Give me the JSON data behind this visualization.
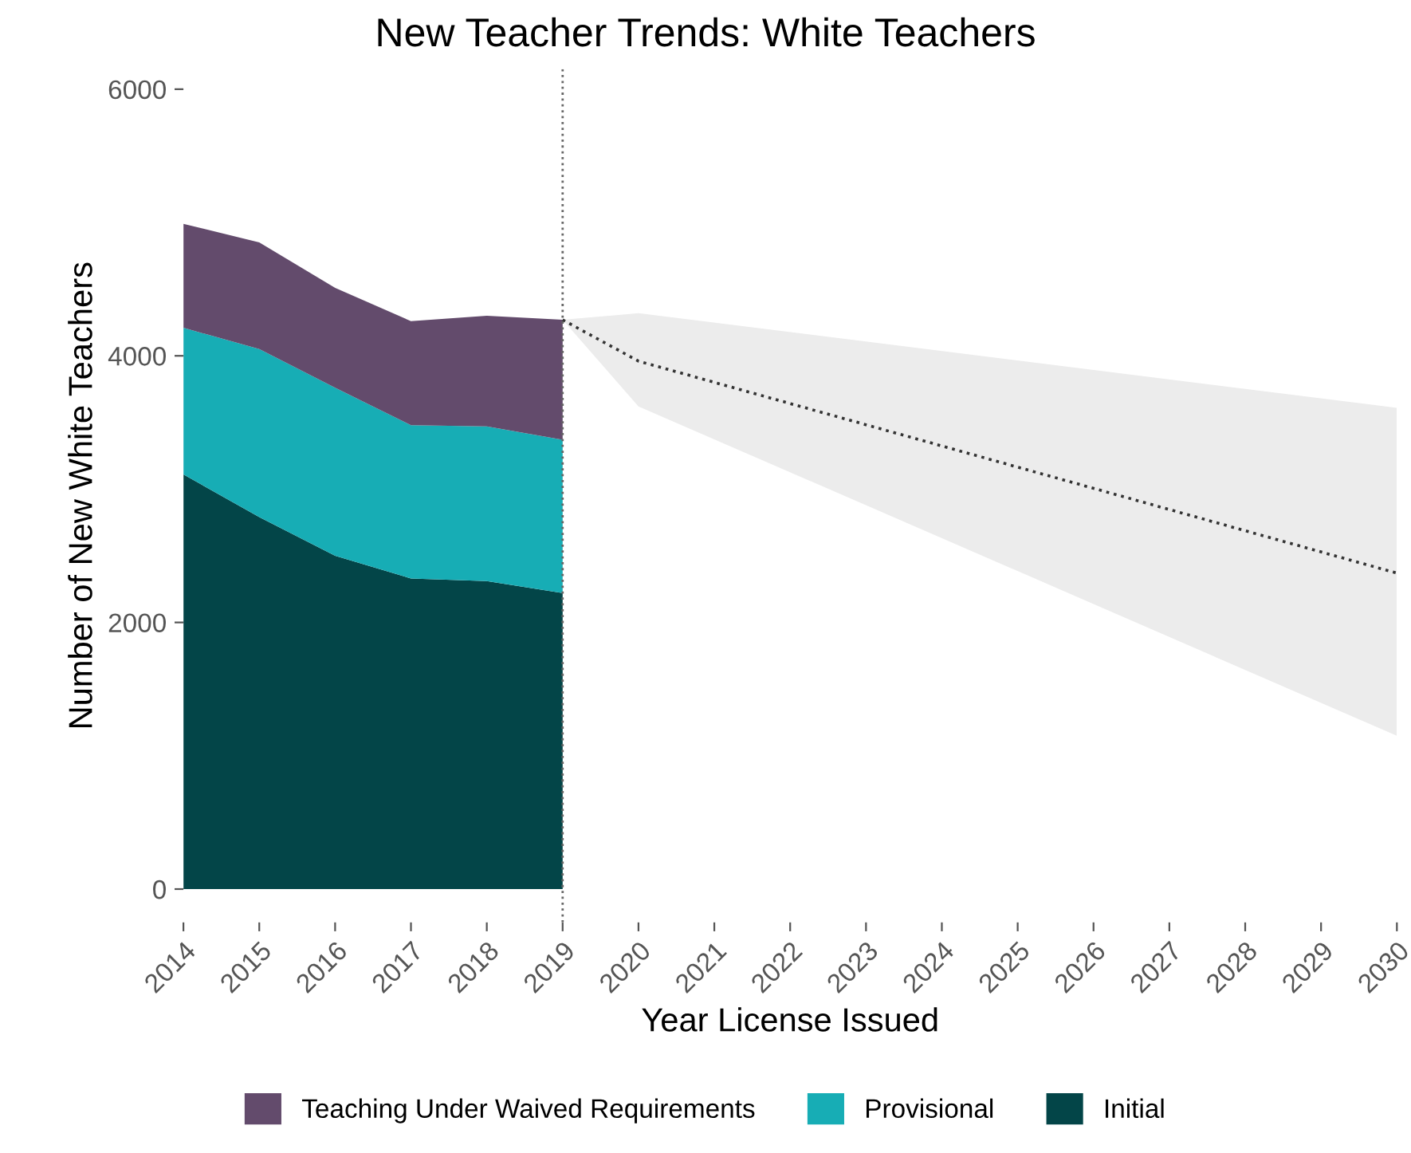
{
  "chart_data": {
    "type": "area",
    "title": "New Teacher Trends: White Teachers",
    "xlabel": "Year License Issued",
    "ylabel": "Number of New White Teachers",
    "stacked": true,
    "grid": false,
    "legend": "bottom",
    "series": [
      {
        "name": "Initial",
        "color": "#034548",
        "x": [
          2014,
          2015,
          2016,
          2017,
          2018,
          2019
        ],
        "values": [
          3110,
          2790,
          2500,
          2330,
          2310,
          2220
        ]
      },
      {
        "name": "Provisional",
        "color": "#17adb5",
        "x": [
          2014,
          2015,
          2016,
          2017,
          2018,
          2019
        ],
        "values": [
          1100,
          1260,
          1260,
          1150,
          1160,
          1150
        ]
      },
      {
        "name": "Teaching Under Waived Requirements",
        "color": "#634b6c",
        "x": [
          2014,
          2015,
          2016,
          2017,
          2018,
          2019
        ],
        "values": [
          780,
          800,
          750,
          780,
          830,
          900
        ]
      },
      {
        "type": "line",
        "color": "#333333",
        "line_style": "dotted",
        "x": [
          2019,
          2020,
          2030
        ],
        "values": [
          4270,
          3960,
          2370
        ],
        "lower": [
          4270,
          3620,
          1150
        ],
        "upper": [
          4270,
          4320,
          3610
        ]
      }
    ],
    "ref_lines": [
      {
        "axis": "x",
        "value": 2019,
        "color": "#666666",
        "line_style": "dotted"
      }
    ],
    "xlim": [
      2014,
      2030
    ],
    "xticks": [
      2014,
      2015,
      2016,
      2017,
      2018,
      2019,
      2020,
      2021,
      2022,
      2023,
      2024,
      2025,
      2026,
      2027,
      2028,
      2029,
      2030
    ],
    "ylim": [
      -250,
      6150
    ],
    "yticks": [
      0,
      2000,
      4000,
      6000
    ]
  }
}
